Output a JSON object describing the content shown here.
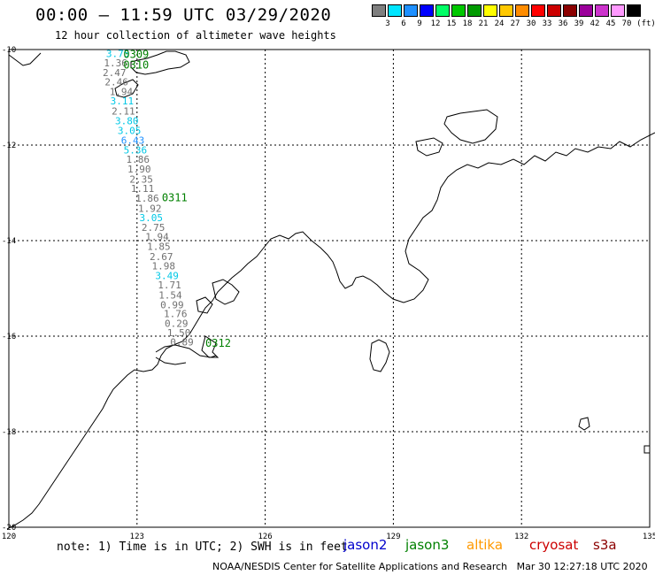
{
  "header": {
    "title": "00:00 – 11:59 UTC 03/29/2020",
    "subtitle": "12 hour collection of altimeter wave heights"
  },
  "legend": {
    "unit": "(ft)",
    "bins": [
      {
        "label": "3",
        "color": "#7f7f7f"
      },
      {
        "label": "6",
        "color": "#00e5ff"
      },
      {
        "label": "9",
        "color": "#1e90ff"
      },
      {
        "label": "12",
        "color": "#0000ff"
      },
      {
        "label": "15",
        "color": "#00ff66"
      },
      {
        "label": "18",
        "color": "#00c800"
      },
      {
        "label": "21",
        "color": "#009a00"
      },
      {
        "label": "24",
        "color": "#ffff00"
      },
      {
        "label": "27",
        "color": "#ffc800"
      },
      {
        "label": "30",
        "color": "#ff8c00"
      },
      {
        "label": "33",
        "color": "#ff0000"
      },
      {
        "label": "36",
        "color": "#cc0000"
      },
      {
        "label": "39",
        "color": "#8b0000"
      },
      {
        "label": "42",
        "color": "#9b009b"
      },
      {
        "label": "45",
        "color": "#cc33cc"
      },
      {
        "label": "70",
        "color": "#ff99ff"
      },
      {
        "label": "",
        "color": "#000000"
      }
    ]
  },
  "map": {
    "lon_range": [
      120,
      135
    ],
    "lat_range": [
      -20,
      -10
    ],
    "lon_ticks": [
      "120",
      "123",
      "126",
      "129",
      "132",
      "135"
    ],
    "lat_ticks": [
      "-10",
      "-12",
      "-14",
      "-16",
      "-18",
      "-20"
    ],
    "coast_color": "#000000",
    "grid_color": "#000000"
  },
  "track": {
    "points": [
      {
        "lat": -10.08,
        "lon": 122.55,
        "text": "3.75",
        "color": "#00c8e6"
      },
      {
        "lat": -10.28,
        "lon": 122.5,
        "text": "1.36",
        "color": "#707070"
      },
      {
        "lat": -10.48,
        "lon": 122.47,
        "text": "2.47",
        "color": "#707070"
      },
      {
        "lat": -10.68,
        "lon": 122.52,
        "text": "2.46",
        "color": "#707070"
      },
      {
        "lat": -10.88,
        "lon": 122.63,
        "text": "1.94",
        "color": "#707070"
      },
      {
        "lat": -11.07,
        "lon": 122.65,
        "text": "3.11",
        "color": "#00c8e6"
      },
      {
        "lat": -11.29,
        "lon": 122.68,
        "text": "2.11",
        "color": "#707070"
      },
      {
        "lat": -11.49,
        "lon": 122.76,
        "text": "3.80",
        "color": "#00c8e6"
      },
      {
        "lat": -11.69,
        "lon": 122.82,
        "text": "3.05",
        "color": "#00c8e6"
      },
      {
        "lat": -11.9,
        "lon": 122.9,
        "text": "6.43",
        "color": "#1e90ff"
      },
      {
        "lat": -12.1,
        "lon": 122.96,
        "text": "5.36",
        "color": "#00c8e6"
      },
      {
        "lat": -12.3,
        "lon": 123.02,
        "text": "1.86",
        "color": "#707070"
      },
      {
        "lat": -12.5,
        "lon": 123.05,
        "text": "1.90",
        "color": "#707070"
      },
      {
        "lat": -12.71,
        "lon": 123.1,
        "text": "2.35",
        "color": "#707070"
      },
      {
        "lat": -12.91,
        "lon": 123.13,
        "text": "1.11",
        "color": "#707070"
      },
      {
        "lat": -13.11,
        "lon": 123.24,
        "text": "1.86",
        "color": "#707070"
      },
      {
        "lat": -13.32,
        "lon": 123.3,
        "text": "1.92",
        "color": "#707070"
      },
      {
        "lat": -13.52,
        "lon": 123.33,
        "text": "3.05",
        "color": "#00c8e6"
      },
      {
        "lat": -13.72,
        "lon": 123.38,
        "text": "2.75",
        "color": "#707070"
      },
      {
        "lat": -13.92,
        "lon": 123.47,
        "text": "1.94",
        "color": "#707070"
      },
      {
        "lat": -14.12,
        "lon": 123.51,
        "text": "1.85",
        "color": "#707070"
      },
      {
        "lat": -14.33,
        "lon": 123.57,
        "text": "2.67",
        "color": "#707070"
      },
      {
        "lat": -14.53,
        "lon": 123.62,
        "text": "1.98",
        "color": "#707070"
      },
      {
        "lat": -14.73,
        "lon": 123.7,
        "text": "3.49",
        "color": "#00c8e6"
      },
      {
        "lat": -14.93,
        "lon": 123.76,
        "text": "1.71",
        "color": "#707070"
      },
      {
        "lat": -15.14,
        "lon": 123.78,
        "text": "1.54",
        "color": "#707070"
      },
      {
        "lat": -15.34,
        "lon": 123.82,
        "text": "0.99",
        "color": "#707070"
      },
      {
        "lat": -15.53,
        "lon": 123.9,
        "text": "1.76",
        "color": "#707070"
      },
      {
        "lat": -15.73,
        "lon": 123.92,
        "text": "0.29",
        "color": "#707070"
      },
      {
        "lat": -15.93,
        "lon": 123.98,
        "text": "1.50",
        "color": "#707070"
      },
      {
        "lat": -16.12,
        "lon": 124.05,
        "text": "0.89",
        "color": "#707070"
      }
    ],
    "time_labels": [
      {
        "lat": -10.1,
        "lon": 122.98,
        "text": "0309",
        "color": "#008000"
      },
      {
        "lat": -10.32,
        "lon": 122.98,
        "text": "0310",
        "color": "#008000"
      },
      {
        "lat": -13.1,
        "lon": 123.88,
        "text": "0311",
        "color": "#008000"
      },
      {
        "lat": -16.15,
        "lon": 124.9,
        "text": "0312",
        "color": "#008000"
      }
    ]
  },
  "footer": {
    "note": "note: 1) Time is in UTC; 2) SWH is in feet",
    "satellites": [
      {
        "name": "jason2",
        "color": "#0000cc"
      },
      {
        "name": "jason3",
        "color": "#008000"
      },
      {
        "name": "altika",
        "color": "#ff9900"
      },
      {
        "name": "cryosat",
        "color": "#cc0000"
      },
      {
        "name": "s3a",
        "color": "#8b0000"
      }
    ],
    "credit": "NOAA/NESDIS Center for Satellite Applications and Research   Mar 30 12:27:18 UTC 2020"
  }
}
